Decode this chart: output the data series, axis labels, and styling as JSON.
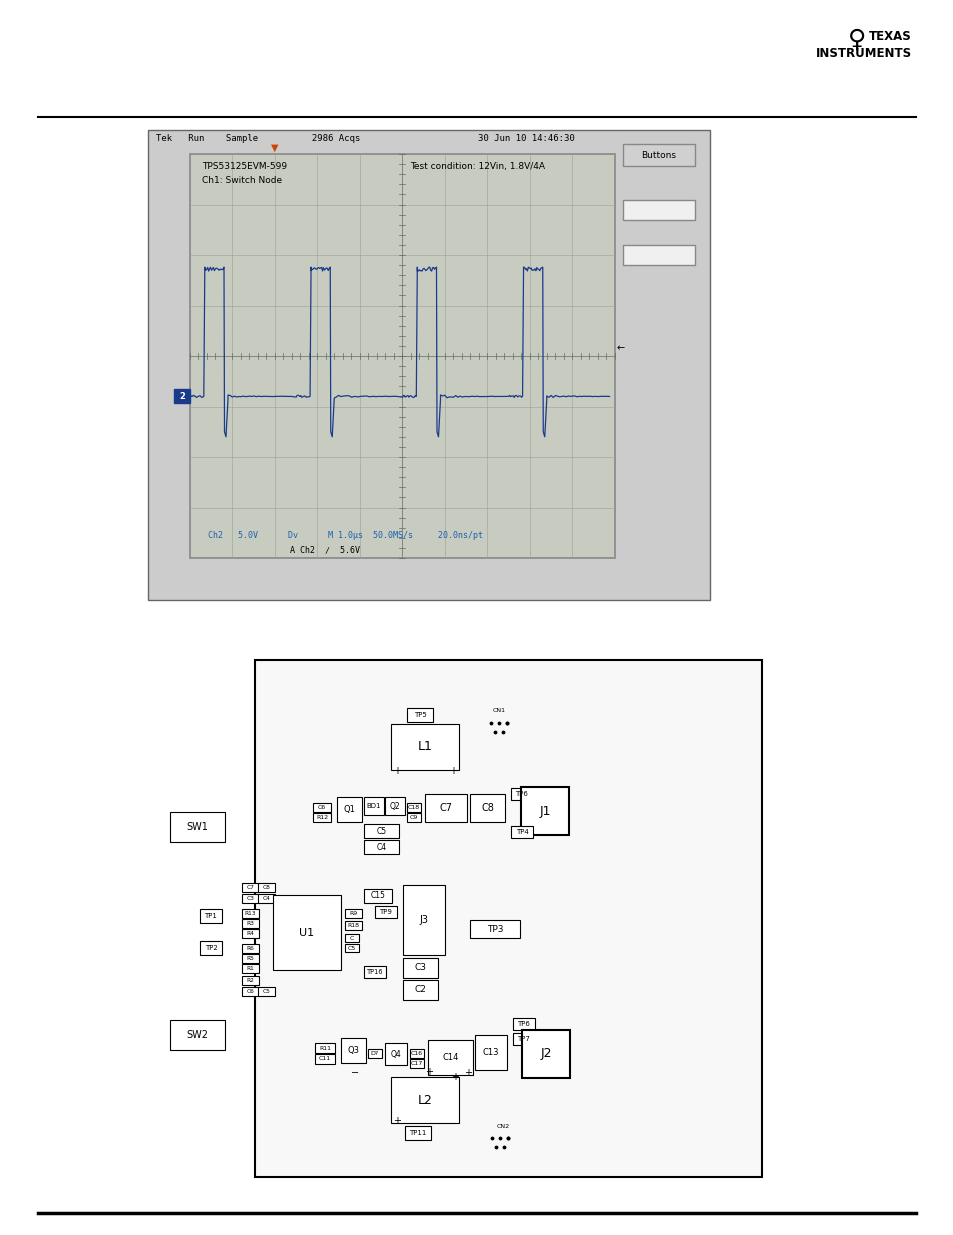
{
  "page_bg": "#ffffff",
  "scope_bg": "#c8ccc0",
  "scope_grid_color": "#9aa09a",
  "waveform_color": "#1a3a8a",
  "scope_label1": "TPS53125EVM-599",
  "scope_label2": "Test condition: 12Vin, 1.8V/4A",
  "scope_label3": "Ch1: Switch Node",
  "scope_header": "Tek   Run    Sample          2986 Acqs                      30 Jun 10 14:46:30",
  "scope_bottom1": "Ch2   5.0V      Dv      M 1.0μs  50.0MS/s     20.0ns/pt",
  "scope_bottom2": "A Ch2  ∕  5.6V",
  "pcb_border": "#000000",
  "pcb_bg": "#f8f8f8"
}
